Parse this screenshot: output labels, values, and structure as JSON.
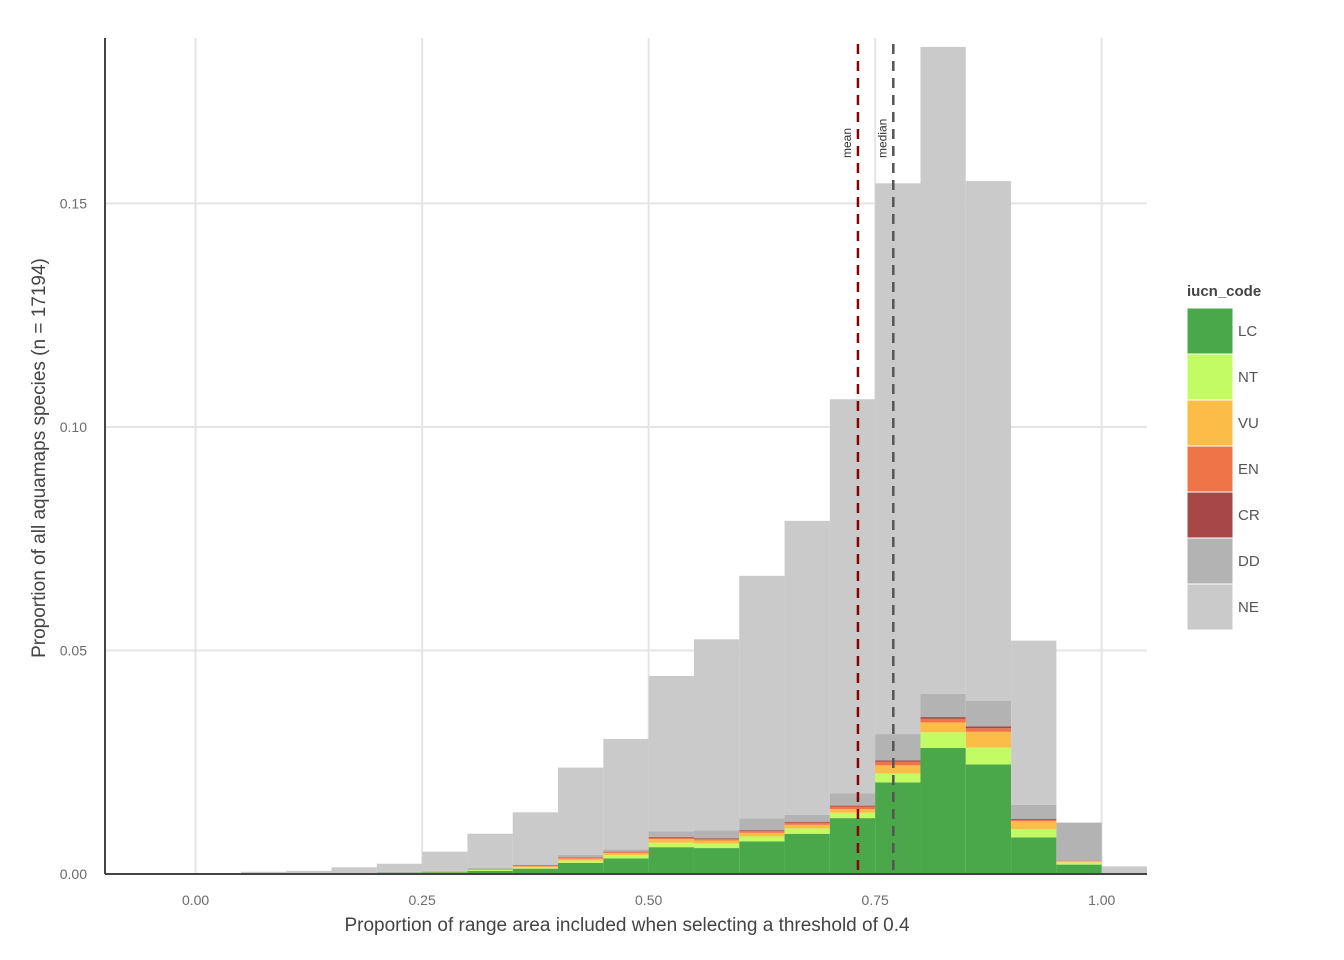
{
  "chart_data": {
    "type": "bar",
    "stacked": true,
    "xlabel": "Proportion of range area included when selecting a threshold of 0.4",
    "ylabel": "Proportion of all aquamaps species (n = 17194)",
    "xlim": [
      -0.1,
      1.05
    ],
    "ylim": [
      0,
      0.187
    ],
    "x_ticks": [
      0.0,
      0.25,
      0.5,
      0.75,
      1.0
    ],
    "x_tick_labels": [
      "0.00",
      "0.25",
      "0.50",
      "0.75",
      "1.00"
    ],
    "y_ticks": [
      0.0,
      0.05,
      0.1,
      0.15
    ],
    "y_tick_labels": [
      "0.00",
      "0.05",
      "0.10",
      "0.15"
    ],
    "grid": true,
    "bin_width": 0.05,
    "bin_starts": [
      0.0,
      0.05,
      0.1,
      0.15,
      0.2,
      0.25,
      0.3,
      0.35,
      0.4,
      0.45,
      0.5,
      0.55,
      0.6,
      0.65,
      0.7,
      0.75,
      0.8,
      0.85,
      0.9,
      0.95,
      1.0
    ],
    "series": [
      {
        "name": "LC",
        "color": "#4aa84a",
        "values": [
          0.0,
          0.0001,
          0.0002,
          0.0002,
          0.0003,
          0.0004,
          0.0007,
          0.0012,
          0.0025,
          0.0035,
          0.006,
          0.0058,
          0.0073,
          0.009,
          0.0125,
          0.0205,
          0.0282,
          0.0245,
          0.0082,
          0.0021,
          0.0
        ]
      },
      {
        "name": "NT",
        "color": "#c2fb64",
        "values": [
          0.0,
          0.0,
          0.0,
          0.0,
          0.0,
          0.0,
          0.0002,
          0.0003,
          0.0005,
          0.0007,
          0.001,
          0.001,
          0.0011,
          0.0012,
          0.0012,
          0.002,
          0.0035,
          0.0038,
          0.0018,
          0.0005,
          0.0
        ]
      },
      {
        "name": "VU",
        "color": "#fbbd47",
        "values": [
          0.0,
          0.0,
          0.0,
          0.0,
          0.0,
          0.0001,
          0.0001,
          0.0002,
          0.0004,
          0.0005,
          0.0008,
          0.0007,
          0.0008,
          0.0008,
          0.0008,
          0.0018,
          0.0022,
          0.0035,
          0.0018,
          0.0003,
          0.0
        ]
      },
      {
        "name": "EN",
        "color": "#ef7548",
        "values": [
          0.0,
          0.0,
          0.0,
          0.0,
          0.0,
          0.0,
          0.0001,
          0.0001,
          0.0002,
          0.0002,
          0.0003,
          0.0003,
          0.0004,
          0.0005,
          0.0006,
          0.0008,
          0.0008,
          0.0008,
          0.0003,
          0.0001,
          0.0
        ]
      },
      {
        "name": "CR",
        "color": "#a84747",
        "values": [
          0.0,
          0.0,
          0.0,
          0.0,
          0.0,
          0.0,
          0.0,
          0.0001,
          0.0001,
          0.0001,
          0.0002,
          0.0002,
          0.0002,
          0.0002,
          0.0002,
          0.0003,
          0.0004,
          0.0004,
          0.0002,
          0.0,
          0.0
        ]
      },
      {
        "name": "DD",
        "color": "#b3b3b3",
        "values": [
          0.0,
          0.0,
          0.0,
          0.0001,
          0.0002,
          0.0002,
          0.0003,
          0.0002,
          0.0006,
          0.0005,
          0.0012,
          0.0018,
          0.0026,
          0.0015,
          0.0027,
          0.0059,
          0.0052,
          0.0057,
          0.0032,
          0.0085,
          0.0
        ]
      },
      {
        "name": "NE",
        "color": "#cacaca",
        "values": [
          0.0,
          0.0004,
          0.0005,
          0.0012,
          0.0018,
          0.0043,
          0.0076,
          0.0117,
          0.0195,
          0.0247,
          0.0348,
          0.0427,
          0.0543,
          0.0658,
          0.0882,
          0.1232,
          0.1447,
          0.1163,
          0.0367,
          0.0,
          0.0017
        ]
      }
    ],
    "vlines": [
      {
        "label": "mean",
        "x": 0.731,
        "color": "#8b0000"
      },
      {
        "label": "median",
        "x": 0.77,
        "color": "#555555"
      }
    ],
    "legend": {
      "title": "iucn_code",
      "position": "right"
    }
  }
}
